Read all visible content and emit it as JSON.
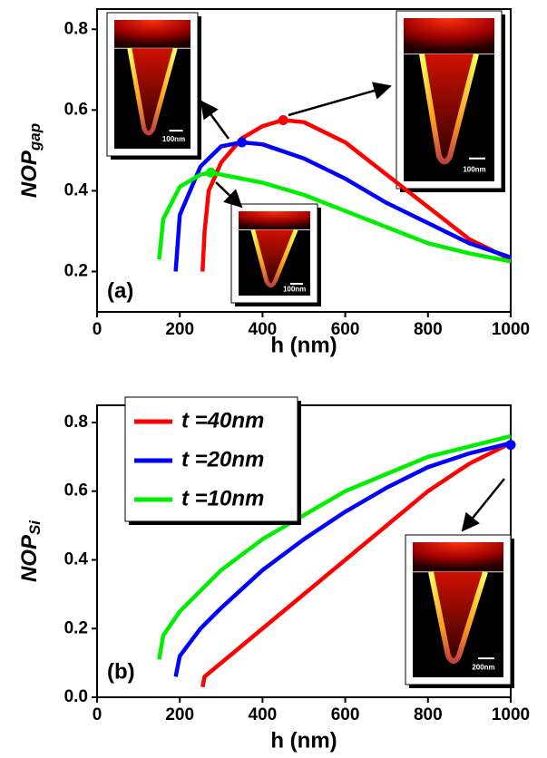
{
  "chart_data": [
    {
      "type": "line",
      "panel_label": "(a)",
      "y_label": "NOP",
      "y_label_sub": "gap",
      "x_label": "h (nm)",
      "xlim": [
        0,
        1000
      ],
      "xticks": [
        0,
        200,
        400,
        600,
        800,
        1000
      ],
      "ylim": [
        0.1,
        0.85
      ],
      "yticks": [
        0.2,
        0.4,
        0.6,
        0.8
      ],
      "series": [
        {
          "color": "#ff0000",
          "x": [
            255,
            260,
            270,
            300,
            350,
            400,
            450,
            500,
            600,
            700,
            800,
            900,
            1000
          ],
          "values": [
            0.2,
            0.3,
            0.4,
            0.47,
            0.53,
            0.56,
            0.575,
            0.57,
            0.52,
            0.44,
            0.36,
            0.28,
            0.23
          ]
        },
        {
          "color": "#0000ff",
          "x": [
            190,
            200,
            250,
            300,
            350,
            400,
            500,
            600,
            700,
            800,
            900,
            1000
          ],
          "values": [
            0.2,
            0.34,
            0.46,
            0.51,
            0.52,
            0.515,
            0.48,
            0.43,
            0.37,
            0.32,
            0.27,
            0.235
          ]
        },
        {
          "color": "#00ee00",
          "x": [
            150,
            160,
            200,
            250,
            275,
            300,
            400,
            500,
            600,
            700,
            800,
            900,
            1000
          ],
          "values": [
            0.23,
            0.33,
            0.41,
            0.44,
            0.445,
            0.44,
            0.42,
            0.39,
            0.35,
            0.31,
            0.27,
            0.245,
            0.225
          ]
        }
      ],
      "points": [
        {
          "x": 450,
          "y": 0.575,
          "color": "#ff0000"
        },
        {
          "x": 350,
          "y": 0.52,
          "color": "#0000ff"
        },
        {
          "x": 275,
          "y": 0.445,
          "color": "#00ee00"
        }
      ],
      "annotations": [
        "100nm",
        "100nm",
        "100nm"
      ]
    },
    {
      "type": "line",
      "panel_label": "(b)",
      "y_label": "NOP",
      "y_label_sub": "Si",
      "x_label": "h (nm)",
      "xlim": [
        0,
        1000
      ],
      "xticks": [
        0,
        200,
        400,
        600,
        800,
        1000
      ],
      "ylim": [
        0,
        0.85
      ],
      "yticks": [
        {
          "value": 0,
          "label": "0.0"
        },
        0.2,
        0.4,
        0.6,
        0.8
      ],
      "series": [
        {
          "name": "t =40nm",
          "color": "#ff0000",
          "x": [
            255,
            260,
            300,
            400,
            500,
            600,
            700,
            800,
            900,
            1000
          ],
          "values": [
            0.03,
            0.06,
            0.1,
            0.2,
            0.3,
            0.4,
            0.5,
            0.6,
            0.68,
            0.74
          ]
        },
        {
          "name": "t =20nm",
          "color": "#0000ff",
          "x": [
            190,
            200,
            250,
            300,
            400,
            500,
            600,
            700,
            800,
            900,
            1000
          ],
          "values": [
            0.06,
            0.12,
            0.2,
            0.26,
            0.37,
            0.46,
            0.54,
            0.61,
            0.67,
            0.71,
            0.74
          ]
        },
        {
          "name": "t =10nm",
          "color": "#00ee00",
          "x": [
            150,
            160,
            200,
            300,
            400,
            500,
            600,
            700,
            800,
            900,
            1000
          ],
          "values": [
            0.11,
            0.18,
            0.25,
            0.37,
            0.46,
            0.53,
            0.6,
            0.65,
            0.7,
            0.73,
            0.76
          ]
        }
      ],
      "points": [
        {
          "x": 1000,
          "y": 0.735,
          "color": "#0000ff"
        }
      ],
      "legend": "upper left",
      "annotations": [
        "200nm"
      ]
    }
  ]
}
